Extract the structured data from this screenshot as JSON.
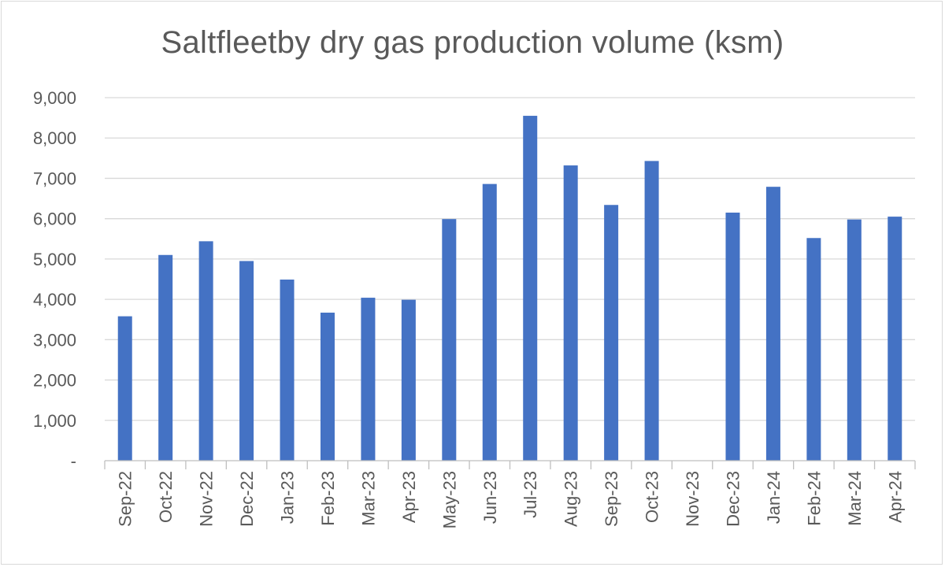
{
  "chart_data": {
    "type": "bar",
    "title": "Saltfleetby dry gas production volume (ksm)",
    "xlabel": "",
    "ylabel": "",
    "categories": [
      "Sep-22",
      "Oct-22",
      "Nov-22",
      "Dec-22",
      "Jan-23",
      "Feb-23",
      "Mar-23",
      "Apr-23",
      "May-23",
      "Jun-23",
      "Jul-23",
      "Aug-23",
      "Sep-23",
      "Oct-23",
      "Nov-23",
      "Dec-23",
      "Jan-24",
      "Feb-24",
      "Mar-24",
      "Apr-24"
    ],
    "series": [
      {
        "color": "#4472c4",
        "values": [
          3580,
          5100,
          5440,
          4950,
          4490,
          3670,
          4040,
          3990,
          5990,
          6860,
          8550,
          7320,
          6340,
          7430,
          0,
          6150,
          6790,
          5520,
          5980,
          6050
        ]
      }
    ],
    "ylim": [
      0,
      9000
    ],
    "y_ticks": [
      0,
      1000,
      2000,
      3000,
      4000,
      5000,
      6000,
      7000,
      8000,
      9000
    ],
    "y_tick_labels": [
      "-",
      "1,000",
      "2,000",
      "3,000",
      "4,000",
      "5,000",
      "6,000",
      "7,000",
      "8,000",
      "9,000"
    ],
    "grid": true,
    "legend": "none"
  }
}
